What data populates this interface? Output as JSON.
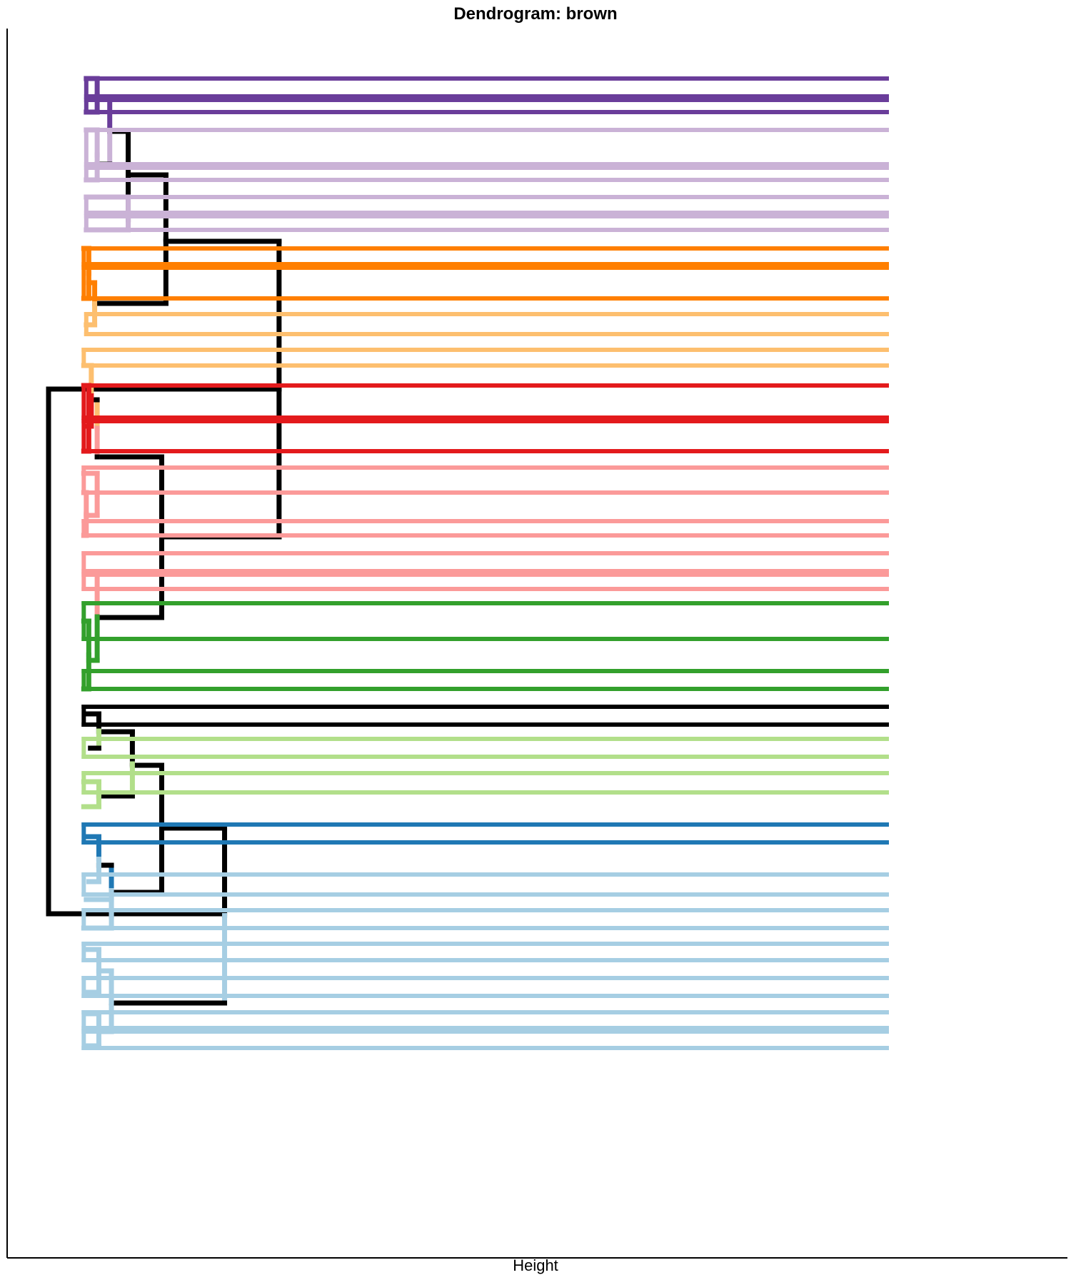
{
  "chart_data": {
    "type": "dendrogram",
    "title": "Dendrogram: brown",
    "xlabel": "Height",
    "ylabel": "",
    "orientation": "horizontal",
    "grid": false,
    "legend": "none",
    "colors": {
      "black": "#000000",
      "light_blue": "#a6cee3",
      "dark_blue": "#1f78b4",
      "light_green": "#b2df8a",
      "dark_green": "#33a02c",
      "pink": "#fb9a99",
      "red": "#e31a1c",
      "light_orange": "#fdbf6f",
      "dark_orange": "#ff7f00",
      "lavender": "#cab2d6",
      "purple": "#6a3d9a"
    },
    "links": [
      {
        "id": "root",
        "height": 1.0,
        "low": 545,
        "high": 1280,
        "color": "#000000",
        "lowTail": 0.725,
        "highTail": 0.79
      },
      {
        "id": "top",
        "height": 0.725,
        "low": 338,
        "high": 752,
        "color": "#000000",
        "lowTail": 0.86,
        "highTail": 0.865
      },
      {
        "id": "top-upper",
        "height": 0.86,
        "low": 245,
        "high": 425,
        "color": "#000000",
        "lowTail": 0.905,
        "highTail": 0.945
      },
      {
        "id": "purple-lav",
        "height": 0.905,
        "low": 184,
        "high": 308,
        "color": "#000000",
        "lowTail": 0.927,
        "highTail": 0.905
      },
      {
        "id": "purple-lav-2",
        "height": 0.927,
        "low": 138,
        "high": 230,
        "color": "#000000",
        "lowTail": 0.942,
        "highTail": 0.942,
        "lowColor": "#6a3d9a",
        "highColor": "#cab2d6"
      },
      {
        "id": "purple-a",
        "height": 0.942,
        "low": 110,
        "high": 157,
        "color": "#6a3d9a",
        "lowTail": 0.955,
        "highTail": 0.955
      },
      {
        "id": "lav-a",
        "height": 0.942,
        "low": 182,
        "high": 252,
        "color": "#cab2d6",
        "lowTail": 0.955,
        "highTail": 0.955
      },
      {
        "id": "lav-b",
        "height": 0.905,
        "low": 276,
        "high": 322,
        "color": "#cab2d6",
        "lowTail": 0.955,
        "highTail": 0.955
      },
      {
        "id": "orange",
        "height": 0.945,
        "low": 396,
        "high": 455,
        "color": "#ff7f00",
        "lowTail": 0.952,
        "highTail": 0.955,
        "lowColor": "#ff7f00",
        "highColor": "#fdbf6f"
      },
      {
        "id": "orange-a",
        "height": 0.952,
        "low": 348,
        "high": 418,
        "color": "#ff7f00",
        "lowTail": 0.958,
        "highTail": 0.958
      },
      {
        "id": "top-lower",
        "height": 0.865,
        "low": 640,
        "high": 865,
        "color": "#000000",
        "lowTail": 0.942,
        "highTail": 0.942
      },
      {
        "id": "orange-red",
        "height": 0.942,
        "low": 560,
        "high": 640,
        "color": "#000000",
        "lowTail": 0.949,
        "highTail": 0.942,
        "lowColor": "#fdbf6f",
        "highColor": "#fb9a99"
      },
      {
        "id": "lorange-red",
        "height": 0.949,
        "low": 512,
        "high": 597,
        "color": "#fdbf6f",
        "lowTail": 0.958,
        "highTail": 0.955,
        "lowColor": "#fdbf6f",
        "highColor": "#e31a1c"
      },
      {
        "id": "red",
        "height": 0.952,
        "low": 540,
        "high": 632,
        "color": "#e31a1c",
        "lowTail": 0.958,
        "highTail": 0.958
      },
      {
        "id": "pink-a",
        "height": 0.942,
        "low": 663,
        "high": 722,
        "color": "#fb9a99",
        "lowTail": 0.958,
        "highTail": 0.955
      },
      {
        "id": "pink-b",
        "height": 0.955,
        "low": 690,
        "high": 750,
        "color": "#fb9a99",
        "lowTail": 0.958,
        "highTail": 0.958
      },
      {
        "id": "pink-green",
        "height": 0.942,
        "low": 803,
        "high": 925,
        "color": "#fb9a99",
        "lowTail": 0.955,
        "highTail": 0.952,
        "lowColor": "#fb9a99",
        "highColor": "#33a02c"
      },
      {
        "id": "green",
        "height": 0.952,
        "low": 870,
        "high": 965,
        "color": "#33a02c",
        "lowTail": 0.958,
        "highTail": 0.958
      },
      {
        "id": "bottom",
        "height": 0.79,
        "low": 1160,
        "high": 1405,
        "color": "#000000",
        "lowTail": 0.865,
        "highTail": 0.925,
        "highColor": "#a6cee3"
      },
      {
        "id": "bottom-upper",
        "height": 0.865,
        "low": 1072,
        "high": 1250,
        "color": "#000000",
        "lowTail": 0.9,
        "highTail": 0.925
      },
      {
        "id": "black-lgreen",
        "height": 0.9,
        "low": 1025,
        "high": 1115,
        "color": "#000000",
        "lowTail": 0.94,
        "highTail": 0.94,
        "highColor": "#b2df8a"
      },
      {
        "id": "black-small",
        "height": 0.94,
        "low": 1000,
        "high": 1048,
        "color": "#000000",
        "lowTail": 0.955,
        "highTail": 0.95,
        "highColor": "#b2df8a"
      },
      {
        "id": "lgreen-b",
        "height": 0.94,
        "low": 1095,
        "high": 1130,
        "color": "#b2df8a",
        "lowTail": 0.958,
        "highTail": 0.958
      },
      {
        "id": "blue-group",
        "height": 0.925,
        "low": 1212,
        "high": 1283,
        "color": "#000000",
        "lowTail": 0.94,
        "highTail": 0.925,
        "lowColor": "#1f78b4",
        "highColor": "#a6cee3"
      },
      {
        "id": "dark-blue",
        "height": 0.94,
        "low": 1172,
        "high": 1235,
        "color": "#1f78b4",
        "lowTail": 0.955,
        "highTail": 0.952,
        "highColor": "#a6cee3"
      },
      {
        "id": "lblue-a",
        "height": 0.925,
        "low": 1260,
        "high": 1300,
        "color": "#a6cee3",
        "lowTail": 0.955,
        "highTail": 0.958
      },
      {
        "id": "lblue-big",
        "height": 0.925,
        "low": 1360,
        "high": 1445,
        "color": "#a6cee3",
        "lowTail": 0.94,
        "highTail": 0.94
      },
      {
        "id": "lblue-c",
        "height": 0.94,
        "low": 1330,
        "high": 1390,
        "color": "#a6cee3",
        "lowTail": 0.955,
        "highTail": 0.955
      },
      {
        "id": "lblue-d",
        "height": 0.94,
        "low": 1420,
        "high": 1465,
        "color": "#a6cee3",
        "lowTail": 0.955,
        "highTail": 0.955
      }
    ],
    "leafTicks": [
      {
        "from": 0.955,
        "low": 110,
        "high": 135,
        "color": "#6a3d9a"
      },
      {
        "from": 0.955,
        "low": 140,
        "high": 157,
        "color": "#6a3d9a"
      },
      {
        "from": 0.955,
        "low": 182,
        "high": 230,
        "color": "#cab2d6"
      },
      {
        "from": 0.955,
        "low": 235,
        "high": 252,
        "color": "#cab2d6"
      },
      {
        "from": 0.955,
        "low": 276,
        "high": 298,
        "color": "#cab2d6"
      },
      {
        "from": 0.955,
        "low": 303,
        "high": 322,
        "color": "#cab2d6"
      },
      {
        "from": 0.958,
        "low": 348,
        "high": 370,
        "color": "#ff7f00"
      },
      {
        "from": 0.958,
        "low": 375,
        "high": 418,
        "color": "#ff7f00"
      },
      {
        "from": 0.955,
        "low": 440,
        "high": 468,
        "color": "#fdbf6f"
      },
      {
        "from": 0.958,
        "low": 490,
        "high": 512,
        "color": "#fdbf6f"
      },
      {
        "from": 0.958,
        "low": 540,
        "high": 585,
        "color": "#e31a1c"
      },
      {
        "from": 0.958,
        "low": 590,
        "high": 632,
        "color": "#e31a1c"
      },
      {
        "from": 0.958,
        "low": 655,
        "high": 690,
        "color": "#fb9a99"
      },
      {
        "from": 0.958,
        "low": 730,
        "high": 750,
        "color": "#fb9a99"
      },
      {
        "from": 0.958,
        "low": 775,
        "high": 800,
        "color": "#fb9a99"
      },
      {
        "from": 0.958,
        "low": 805,
        "high": 825,
        "color": "#fb9a99"
      },
      {
        "from": 0.958,
        "low": 845,
        "high": 895,
        "color": "#33a02c"
      },
      {
        "from": 0.958,
        "low": 940,
        "high": 965,
        "color": "#33a02c"
      },
      {
        "from": 0.958,
        "low": 990,
        "high": 1015,
        "color": "#000000"
      },
      {
        "from": 0.958,
        "low": 1035,
        "high": 1060,
        "color": "#b2df8a"
      },
      {
        "from": 0.958,
        "low": 1083,
        "high": 1110,
        "color": "#b2df8a"
      },
      {
        "from": 0.958,
        "low": 1155,
        "high": 1180,
        "color": "#1f78b4"
      },
      {
        "from": 0.958,
        "low": 1225,
        "high": 1253,
        "color": "#a6cee3"
      },
      {
        "from": 0.958,
        "low": 1275,
        "high": 1300,
        "color": "#a6cee3"
      },
      {
        "from": 0.958,
        "low": 1322,
        "high": 1345,
        "color": "#a6cee3"
      },
      {
        "from": 0.958,
        "low": 1370,
        "high": 1395,
        "color": "#a6cee3"
      },
      {
        "from": 0.958,
        "low": 1418,
        "high": 1440,
        "color": "#a6cee3"
      },
      {
        "from": 0.958,
        "low": 1445,
        "high": 1468,
        "color": "#a6cee3"
      }
    ]
  }
}
